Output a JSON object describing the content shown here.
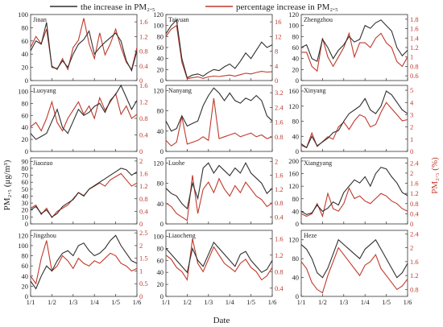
{
  "legend": {
    "black": "the increase in PM₂.₅",
    "red": "percentage increase in PM₂.₅"
  },
  "axes": {
    "xlabel": "Date",
    "ylabel_left": "PM₂.₅ (μg/m³)",
    "ylabel_right": "PM₂.₅ (%)",
    "x_ticks": [
      "1/1",
      "1/2",
      "1/3",
      "1/4",
      "1/5",
      "1/6"
    ]
  },
  "colors": {
    "black": "#2f2f2f",
    "red": "#c0392b"
  },
  "chart_data": [
    {
      "type": "line",
      "city": "Jinan",
      "left_ticks": [
        0,
        20,
        40,
        60,
        80,
        100
      ],
      "left_lim": [
        0,
        100
      ],
      "right_ticks": [
        0.0,
        0.4,
        0.8,
        1.2,
        1.6
      ],
      "right_lim": [
        0,
        1.8
      ],
      "x": [
        0,
        0.05,
        0.1,
        0.15,
        0.2,
        0.25,
        0.3,
        0.35,
        0.4,
        0.45,
        0.5,
        0.55,
        0.6,
        0.65,
        0.7,
        0.75,
        0.8,
        0.85,
        0.9,
        0.95,
        1.0
      ],
      "black": [
        45,
        60,
        55,
        88,
        20,
        18,
        30,
        20,
        40,
        55,
        62,
        75,
        40,
        50,
        58,
        65,
        72,
        60,
        30,
        15,
        45
      ],
      "red": [
        0.9,
        1.2,
        1.0,
        1.4,
        0.4,
        0.3,
        0.6,
        0.3,
        0.9,
        1.1,
        1.7,
        1.0,
        0.6,
        1.3,
        0.7,
        1.0,
        1.4,
        0.9,
        0.5,
        0.3,
        0.9
      ]
    },
    {
      "type": "line",
      "city": "Taiyuan",
      "left_ticks": [
        0,
        20,
        40,
        60,
        80,
        100,
        120
      ],
      "left_lim": [
        0,
        120
      ],
      "right_ticks": [
        0,
        4,
        8,
        12,
        16
      ],
      "right_lim": [
        0,
        18
      ],
      "x": [
        0,
        0.05,
        0.1,
        0.15,
        0.2,
        0.25,
        0.3,
        0.35,
        0.4,
        0.45,
        0.5,
        0.55,
        0.6,
        0.65,
        0.7,
        0.75,
        0.8,
        0.85,
        0.9,
        0.95,
        1.0
      ],
      "black": [
        85,
        100,
        110,
        40,
        5,
        10,
        12,
        8,
        15,
        20,
        18,
        25,
        30,
        22,
        35,
        50,
        40,
        55,
        70,
        60,
        65
      ],
      "red": [
        12,
        14,
        15,
        5,
        0.5,
        0.8,
        1,
        0.6,
        1,
        1.2,
        1.1,
        1.3,
        1.5,
        1.2,
        1.6,
        2,
        1.8,
        2.2,
        2.5,
        2.3,
        2.4
      ]
    },
    {
      "type": "line",
      "city": "Zhengzhou",
      "left_ticks": [
        0,
        20,
        40,
        60,
        80,
        100,
        120
      ],
      "left_lim": [
        0,
        120
      ],
      "right_ticks": [
        0.6,
        0.8,
        1.0,
        1.2,
        1.4,
        1.6,
        1.8
      ],
      "right_lim": [
        0.5,
        1.9
      ],
      "x": [
        0,
        0.05,
        0.1,
        0.15,
        0.2,
        0.25,
        0.3,
        0.35,
        0.4,
        0.45,
        0.5,
        0.55,
        0.6,
        0.65,
        0.7,
        0.75,
        0.8,
        0.85,
        0.9,
        0.95,
        1.0
      ],
      "black": [
        60,
        65,
        40,
        35,
        75,
        60,
        40,
        55,
        65,
        80,
        70,
        75,
        100,
        95,
        105,
        110,
        100,
        90,
        60,
        45,
        55
      ],
      "red": [
        1.1,
        1.1,
        0.8,
        0.7,
        1.4,
        1.0,
        0.8,
        1.0,
        1.2,
        1.5,
        1.0,
        1.3,
        1.3,
        1.2,
        1.4,
        1.5,
        1.3,
        1.2,
        0.9,
        0.8,
        1.0
      ]
    },
    {
      "type": "line",
      "city": "Luoyang",
      "left_ticks": [
        0,
        20,
        40,
        60,
        80,
        100
      ],
      "left_lim": [
        0,
        110
      ],
      "right_ticks": [
        0.0,
        0.4,
        0.8,
        1.2,
        1.6
      ],
      "right_lim": [
        0,
        1.6
      ],
      "x": [
        0,
        0.05,
        0.1,
        0.15,
        0.2,
        0.25,
        0.3,
        0.35,
        0.4,
        0.45,
        0.5,
        0.55,
        0.6,
        0.65,
        0.7,
        0.75,
        0.8,
        0.85,
        0.9,
        0.95,
        1.0
      ],
      "black": [
        30,
        20,
        25,
        30,
        50,
        70,
        40,
        30,
        50,
        70,
        60,
        65,
        75,
        80,
        65,
        85,
        95,
        110,
        90,
        70,
        85
      ],
      "red": [
        0.6,
        0.7,
        0.5,
        0.8,
        1.2,
        0.7,
        0.5,
        0.8,
        1.0,
        1.2,
        0.9,
        1.1,
        0.8,
        1.3,
        1.0,
        1.2,
        1.4,
        0.9,
        1.1,
        0.8,
        0.9
      ]
    },
    {
      "type": "line",
      "city": "Nanyang",
      "left_ticks": [
        0,
        40,
        80,
        120
      ],
      "left_lim": [
        0,
        130
      ],
      "right_ticks": [
        0.8,
        1.6,
        2.4,
        3.2
      ],
      "right_lim": [
        0,
        3.6
      ],
      "x": [
        0,
        0.05,
        0.1,
        0.15,
        0.2,
        0.25,
        0.3,
        0.35,
        0.4,
        0.45,
        0.5,
        0.55,
        0.6,
        0.65,
        0.7,
        0.75,
        0.8,
        0.85,
        0.9,
        0.95,
        1.0
      ],
      "black": [
        60,
        40,
        45,
        70,
        50,
        55,
        60,
        90,
        110,
        125,
        115,
        100,
        115,
        100,
        95,
        105,
        100,
        110,
        100,
        70,
        60
      ],
      "red": [
        0.6,
        0.3,
        0.5,
        1.9,
        0.4,
        0.5,
        0.6,
        0.8,
        0.6,
        2.9,
        0.7,
        0.8,
        0.9,
        1.0,
        0.8,
        0.9,
        1.0,
        0.8,
        0.9,
        0.7,
        0.8
      ]
    },
    {
      "type": "line",
      "city": "Xinyang",
      "left_ticks": [
        0,
        40,
        80,
        120,
        160
      ],
      "left_lim": [
        0,
        175
      ],
      "right_ticks": [
        0,
        1,
        2,
        3,
        4,
        5
      ],
      "right_lim": [
        0,
        5.4
      ],
      "x": [
        0,
        0.05,
        0.1,
        0.15,
        0.2,
        0.25,
        0.3,
        0.35,
        0.4,
        0.45,
        0.5,
        0.55,
        0.6,
        0.65,
        0.7,
        0.75,
        0.8,
        0.85,
        0.9,
        0.95,
        1.0
      ],
      "black": [
        20,
        10,
        40,
        15,
        25,
        35,
        50,
        55,
        80,
        100,
        110,
        120,
        140,
        110,
        100,
        120,
        160,
        150,
        130,
        110,
        100
      ],
      "red": [
        0.5,
        0.3,
        1.5,
        0.4,
        0.8,
        1.2,
        1.0,
        2.0,
        2.4,
        1.8,
        2.5,
        3.0,
        2.8,
        2.0,
        2.2,
        3.2,
        4.0,
        3.5,
        3.0,
        2.5,
        2.6
      ]
    },
    {
      "type": "line",
      "city": "Jiaozuo",
      "left_ticks": [
        0,
        10,
        20,
        30,
        40,
        50,
        60,
        70,
        80,
        90
      ],
      "left_lim": [
        0,
        95
      ],
      "right_ticks": [
        0.0,
        0.4,
        0.8,
        1.2,
        1.6,
        2.0
      ],
      "right_lim": [
        0,
        2.1
      ],
      "x": [
        0,
        0.05,
        0.1,
        0.15,
        0.2,
        0.25,
        0.3,
        0.35,
        0.4,
        0.45,
        0.5,
        0.55,
        0.6,
        0.65,
        0.7,
        0.75,
        0.8,
        0.85,
        0.9,
        0.95,
        1.0
      ],
      "black": [
        20,
        25,
        15,
        20,
        10,
        15,
        25,
        30,
        35,
        45,
        40,
        50,
        55,
        60,
        65,
        70,
        75,
        80,
        78,
        70,
        75
      ],
      "red": [
        0.5,
        0.6,
        0.3,
        0.5,
        0.2,
        0.4,
        0.5,
        0.6,
        0.8,
        1.0,
        0.9,
        1.1,
        1.2,
        1.3,
        1.2,
        1.4,
        1.5,
        1.6,
        1.4,
        1.2,
        1.3
      ]
    },
    {
      "type": "line",
      "city": "Luohe",
      "left_ticks": [
        0,
        40,
        80,
        120
      ],
      "left_lim": [
        0,
        130
      ],
      "right_ticks": [
        0.4,
        0.8,
        1.2,
        1.6,
        2.0
      ],
      "right_lim": [
        0.2,
        2.1
      ],
      "x": [
        0,
        0.05,
        0.1,
        0.15,
        0.2,
        0.25,
        0.3,
        0.35,
        0.4,
        0.45,
        0.5,
        0.55,
        0.6,
        0.65,
        0.7,
        0.75,
        0.8,
        0.85,
        0.9,
        0.95,
        1.0
      ],
      "black": [
        70,
        60,
        55,
        40,
        30,
        80,
        50,
        110,
        120,
        100,
        115,
        105,
        95,
        110,
        100,
        120,
        100,
        90,
        80,
        60,
        70
      ],
      "red": [
        0.8,
        0.7,
        0.5,
        0.4,
        0.3,
        1.6,
        0.5,
        1.2,
        1.4,
        1.1,
        1.5,
        1.2,
        1.0,
        1.3,
        1.1,
        1.4,
        1.2,
        1.0,
        0.9,
        0.7,
        0.8
      ]
    },
    {
      "type": "line",
      "city": "Xiangyang",
      "left_ticks": [
        0,
        40,
        80,
        120,
        160,
        200
      ],
      "left_lim": [
        0,
        210
      ],
      "right_ticks": [
        0.0,
        0.4,
        0.8,
        1.2,
        1.6,
        2.0,
        2.4
      ],
      "right_lim": [
        0,
        2.6
      ],
      "x": [
        0,
        0.05,
        0.1,
        0.15,
        0.2,
        0.25,
        0.3,
        0.35,
        0.4,
        0.45,
        0.5,
        0.55,
        0.6,
        0.65,
        0.7,
        0.75,
        0.8,
        0.85,
        0.9,
        0.95,
        1.0
      ],
      "black": [
        40,
        30,
        35,
        60,
        40,
        50,
        70,
        60,
        100,
        120,
        140,
        130,
        150,
        120,
        160,
        180,
        175,
        150,
        130,
        100,
        90
      ],
      "red": [
        0.4,
        0.3,
        0.4,
        0.8,
        0.3,
        1.2,
        0.6,
        0.5,
        0.8,
        1.4,
        1.0,
        1.1,
        0.9,
        0.8,
        1.0,
        1.2,
        1.1,
        0.9,
        0.8,
        0.6,
        0.5
      ]
    },
    {
      "type": "line",
      "city": "Jingzhou",
      "left_ticks": [
        0,
        20,
        40,
        60,
        80,
        100,
        120
      ],
      "left_lim": [
        0,
        130
      ],
      "right_ticks": [
        0.0,
        0.5,
        1.0,
        1.5,
        2.0,
        2.5
      ],
      "right_lim": [
        0,
        2.6
      ],
      "x": [
        0,
        0.05,
        0.1,
        0.15,
        0.2,
        0.25,
        0.3,
        0.35,
        0.4,
        0.45,
        0.5,
        0.55,
        0.6,
        0.65,
        0.7,
        0.75,
        0.8,
        0.85,
        0.9,
        0.95,
        1.0
      ],
      "black": [
        30,
        15,
        40,
        60,
        50,
        70,
        85,
        90,
        80,
        100,
        105,
        90,
        80,
        85,
        95,
        110,
        120,
        100,
        85,
        70,
        65
      ],
      "red": [
        0.8,
        0.5,
        1.5,
        2.2,
        1.0,
        1.2,
        1.6,
        1.4,
        1.1,
        1.5,
        1.3,
        1.2,
        1.4,
        1.3,
        1.5,
        1.7,
        1.6,
        1.3,
        1.2,
        1.0,
        1.1
      ]
    },
    {
      "type": "line",
      "city": "Liaocheng",
      "left_ticks": [
        0,
        20,
        40,
        60,
        80,
        100
      ],
      "left_lim": [
        0,
        110
      ],
      "right_ticks": [
        0.4,
        0.8,
        1.2,
        1.6
      ],
      "right_lim": [
        0.2,
        1.8
      ],
      "x": [
        0,
        0.05,
        0.1,
        0.15,
        0.2,
        0.25,
        0.3,
        0.35,
        0.4,
        0.45,
        0.5,
        0.55,
        0.6,
        0.65,
        0.7,
        0.75,
        0.8,
        0.85,
        0.9,
        0.95,
        1.0
      ],
      "black": [
        80,
        70,
        60,
        50,
        40,
        80,
        60,
        50,
        70,
        90,
        80,
        70,
        60,
        50,
        70,
        75,
        60,
        50,
        40,
        45,
        60
      ],
      "red": [
        1.2,
        1.1,
        0.9,
        0.8,
        0.6,
        1.6,
        1.0,
        0.8,
        1.1,
        1.4,
        1.2,
        1.0,
        0.9,
        0.8,
        1.0,
        1.1,
        0.9,
        0.8,
        0.6,
        0.7,
        0.9
      ]
    },
    {
      "type": "line",
      "city": "Heze",
      "left_ticks": [
        0,
        40,
        80,
        120
      ],
      "left_lim": [
        0,
        140
      ],
      "right_ticks": [
        0.8,
        1.2,
        1.6,
        2.0,
        2.4
      ],
      "right_lim": [
        0.6,
        2.5
      ],
      "x": [
        0,
        0.05,
        0.1,
        0.15,
        0.2,
        0.25,
        0.3,
        0.35,
        0.4,
        0.45,
        0.5,
        0.55,
        0.6,
        0.65,
        0.7,
        0.75,
        0.8,
        0.85,
        0.9,
        0.95,
        1.0
      ],
      "black": [
        110,
        100,
        80,
        50,
        40,
        60,
        90,
        120,
        110,
        100,
        90,
        80,
        100,
        110,
        120,
        100,
        80,
        60,
        40,
        50,
        70
      ],
      "red": [
        1.6,
        1.4,
        1.0,
        0.8,
        0.7,
        1.2,
        1.6,
        2.0,
        1.8,
        1.6,
        1.4,
        1.2,
        1.5,
        1.6,
        1.8,
        1.4,
        1.2,
        1.0,
        0.8,
        0.9,
        1.1
      ]
    }
  ]
}
